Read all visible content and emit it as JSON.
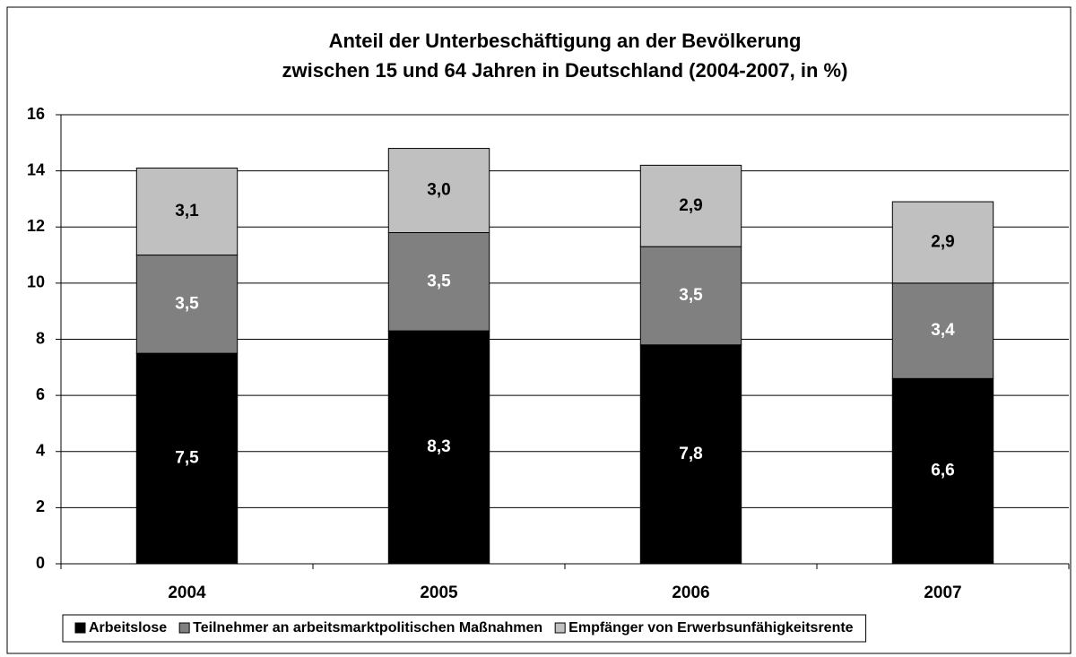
{
  "chart_data": {
    "type": "stacked-bar",
    "title": [
      "Anteil der Unterbeschäftigung an der Bevölkerung",
      "zwischen 15 und 64 Jahren in Deutschland (2004-2007, in %)"
    ],
    "categories": [
      "2004",
      "2005",
      "2006",
      "2007"
    ],
    "series": [
      {
        "name": "Arbeitslose",
        "color": "#000000",
        "label_color": "#ffffff",
        "values": [
          7.5,
          8.3,
          7.8,
          6.6
        ],
        "value_labels": [
          "7,5",
          "8,3",
          "7,8",
          "6,6"
        ]
      },
      {
        "name": "Teilnehmer an arbeitsmarktpolitischen Maßnahmen",
        "color": "#808080",
        "label_color": "#ffffff",
        "values": [
          3.5,
          3.5,
          3.5,
          3.4
        ],
        "value_labels": [
          "3,5",
          "3,5",
          "3,5",
          "3,4"
        ]
      },
      {
        "name": "Empfänger von Erwerbsunfähigkeitsrente",
        "color": "#c0c0c0",
        "label_color": "#000000",
        "values": [
          3.1,
          3.0,
          2.9,
          2.9
        ],
        "value_labels": [
          "3,1",
          "3,0",
          "2,9",
          "2,9"
        ]
      }
    ],
    "ylim": [
      0,
      16
    ],
    "yticks": [
      0,
      2,
      4,
      6,
      8,
      10,
      12,
      14,
      16
    ],
    "grid": true,
    "legend": "bottom"
  }
}
